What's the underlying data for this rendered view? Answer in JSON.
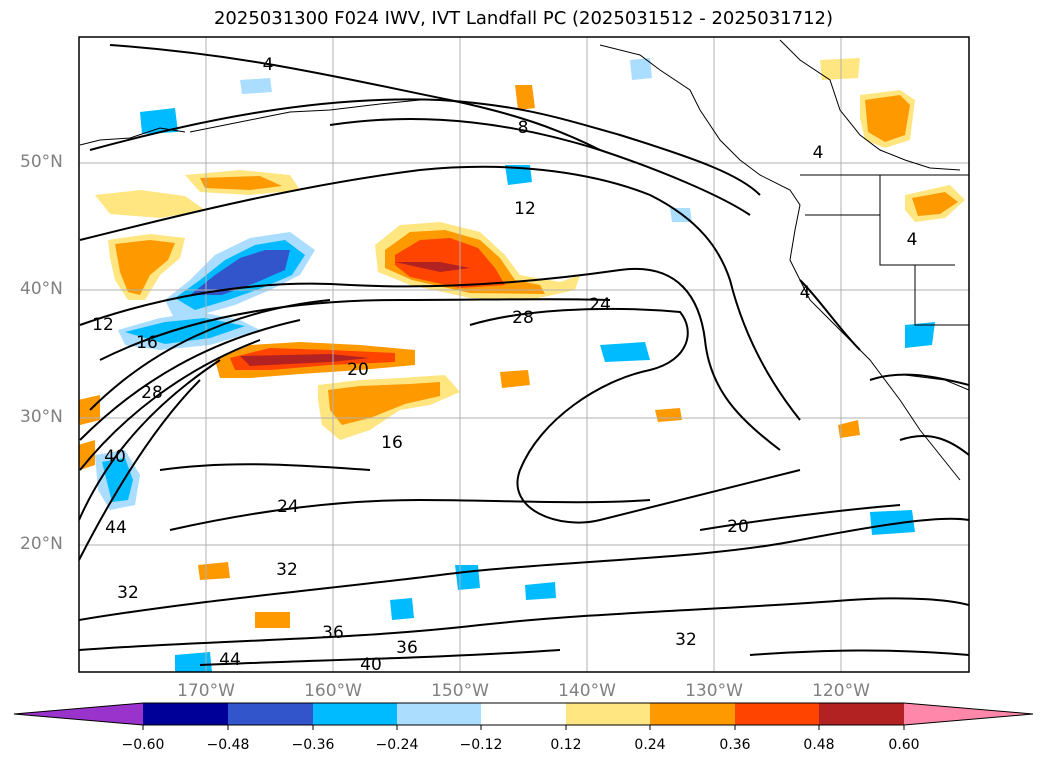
{
  "title": "2025031300 F024 IWV, IVT Landfall PC (2025031512 - 2025031712)",
  "map": {
    "lat_labels": [
      "50°N",
      "40°N",
      "30°N",
      "20°N"
    ],
    "lon_labels": [
      "170°W",
      "160°W",
      "150°W",
      "140°W",
      "130°W",
      "120°W"
    ],
    "contour_labels": [
      "4",
      "8",
      "12",
      "12",
      "16",
      "20",
      "24",
      "24",
      "28",
      "28",
      "32",
      "32",
      "32",
      "36",
      "36",
      "40",
      "40",
      "44",
      "44",
      "16",
      "20",
      "4",
      "4",
      "4"
    ]
  },
  "colorbar": {
    "ticks": [
      "−0.60",
      "−0.48",
      "−0.36",
      "−0.24",
      "−0.12",
      "0.12",
      "0.24",
      "0.36",
      "0.48",
      "0.60"
    ],
    "colors": [
      "#9933cc",
      "#000099",
      "#3355cc",
      "#00bbff",
      "#aaddff",
      "#ffffff",
      "#ffe680",
      "#ff9900",
      "#ff4400",
      "#b22222",
      "#ff88aa"
    ]
  }
}
